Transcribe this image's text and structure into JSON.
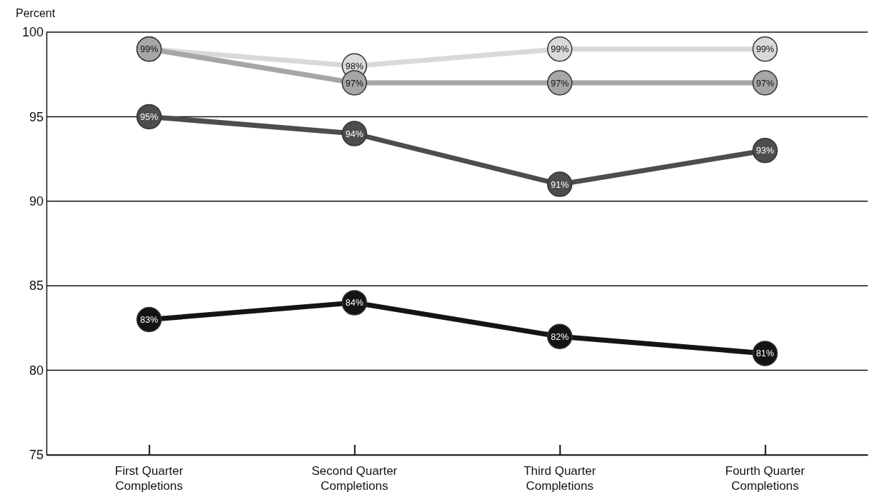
{
  "chart_data": {
    "type": "line",
    "ylabel": "Percent",
    "categories": [
      "First Quarter Completions",
      "Second Quarter Completions",
      "Third Quarter Completions",
      "Fourth Quarter Completions"
    ],
    "series": [
      {
        "color": "#d9d9d9",
        "values": [
          99,
          98,
          99,
          99
        ],
        "value_labels": [
          "99%",
          "98%",
          "99%",
          "99%"
        ]
      },
      {
        "color": "#a6a6a6",
        "values": [
          99,
          97,
          97,
          97
        ],
        "value_labels": [
          null,
          "97%",
          "97%",
          "97%"
        ]
      },
      {
        "color": "#4d4d4d",
        "values": [
          95,
          94,
          91,
          93
        ],
        "value_labels": [
          "95%",
          "94%",
          "91%",
          "93%"
        ]
      },
      {
        "color": "#141414",
        "values": [
          83,
          84,
          82,
          81
        ],
        "value_labels": [
          "83%",
          "84%",
          "82%",
          "81%"
        ]
      }
    ],
    "ylim": [
      75,
      100
    ],
    "yticks": [
      75,
      80,
      85,
      90,
      95,
      100
    ],
    "grid": "y",
    "marker": "circle",
    "line_style": "solid"
  }
}
